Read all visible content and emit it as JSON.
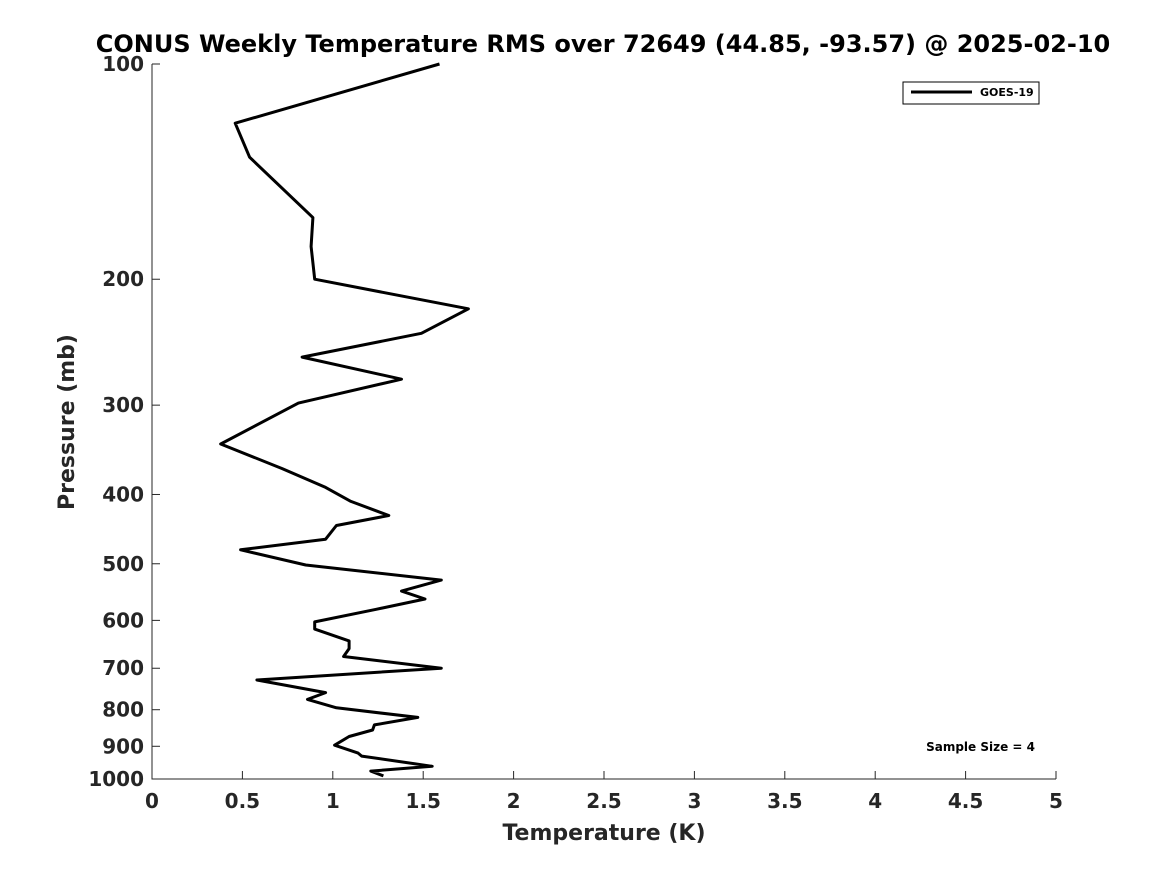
{
  "chart_data": {
    "type": "line",
    "title": "CONUS Weekly Temperature RMS over 72649 (44.85, -93.57) @ 2025-02-10",
    "xlabel": "Temperature (K)",
    "ylabel": "Pressure (mb)",
    "xlim": [
      0,
      5
    ],
    "ylim": [
      100,
      1000
    ],
    "y_scale": "log",
    "y_reversed": true,
    "grid": false,
    "x_ticks": [
      "0",
      "0.5",
      "1",
      "1.5",
      "2",
      "2.5",
      "3",
      "3.5",
      "4",
      "4.5",
      "5"
    ],
    "y_ticks": [
      "100",
      "200",
      "300",
      "400",
      "500",
      "600",
      "700",
      "800",
      "900",
      "1000"
    ],
    "legend": {
      "position": "top-right",
      "entries": [
        "GOES-19"
      ]
    },
    "annotation": "Sample Size = 4",
    "series": [
      {
        "name": "GOES-19",
        "color": "#000000",
        "x": [
          1.59,
          0.46,
          0.54,
          0.89,
          0.88,
          0.9,
          1.75,
          1.49,
          0.83,
          1.38,
          0.81,
          0.38,
          0.72,
          0.96,
          1.1,
          1.31,
          1.02,
          0.96,
          0.49,
          0.85,
          1.6,
          1.38,
          1.51,
          1.24,
          0.9,
          0.9,
          1.09,
          1.09,
          1.06,
          1.6,
          0.58,
          0.96,
          0.86,
          1.02,
          1.47,
          1.23,
          1.22,
          1.09,
          1.01,
          1.14,
          1.16,
          1.55,
          1.21,
          1.28
        ],
        "y": [
          100,
          121,
          135,
          164,
          180,
          200,
          220,
          238,
          257,
          276,
          298,
          340,
          368,
          391,
          409,
          428,
          442,
          462,
          478,
          502,
          527,
          546,
          560,
          579,
          603,
          617,
          641,
          657,
          674,
          700,
          727,
          757,
          774,
          795,
          820,
          840,
          854,
          872,
          897,
          920,
          929,
          960,
          975,
          990
        ]
      }
    ]
  }
}
